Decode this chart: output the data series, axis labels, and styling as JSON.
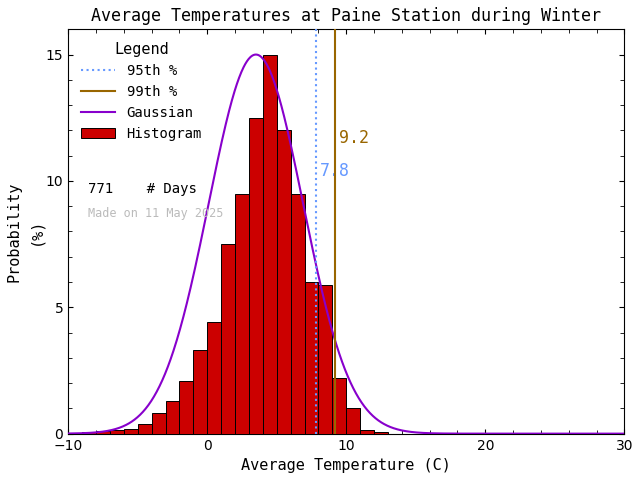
{
  "title": "Average Temperatures at Paine Station during Winter",
  "xlabel": "Average Temperature (C)",
  "ylabel": "Probability\n(%)",
  "xlim": [
    -10,
    30
  ],
  "ylim": [
    0,
    16
  ],
  "xticks": [
    -10,
    0,
    10,
    20,
    30
  ],
  "yticks": [
    0,
    5,
    10,
    15
  ],
  "bin_edges": [
    -9,
    -8,
    -7,
    -6,
    -5,
    -4,
    -3,
    -2,
    -1,
    0,
    1,
    2,
    3,
    4,
    5,
    6,
    7,
    8,
    9,
    10,
    11,
    12,
    13,
    14,
    15
  ],
  "bin_heights": [
    0.05,
    0.1,
    0.15,
    0.2,
    0.4,
    0.8,
    1.3,
    2.1,
    3.3,
    4.4,
    7.5,
    9.5,
    12.5,
    15.0,
    12.0,
    9.5,
    6.0,
    5.9,
    2.2,
    1.0,
    0.15,
    0.05,
    0.0,
    0.0
  ],
  "bar_color": "#cc0000",
  "bar_edgecolor": "#000000",
  "gauss_color": "#8800cc",
  "gauss_mean": 3.5,
  "gauss_std": 3.4,
  "gauss_amplitude": 15.0,
  "pct95_val": 7.8,
  "pct99_val": 9.2,
  "pct95_color": "#6699ff",
  "pct99_color": "#996600",
  "n_days": 771,
  "made_on": "Made on 11 May 2025",
  "made_on_color": "#bbbbbb",
  "bg_color": "#ffffff",
  "annotation_95_label": "7.8",
  "annotation_99_label": "9.2",
  "title_fontsize": 12,
  "axis_label_fontsize": 11,
  "legend_fontsize": 10,
  "tick_fontsize": 10
}
